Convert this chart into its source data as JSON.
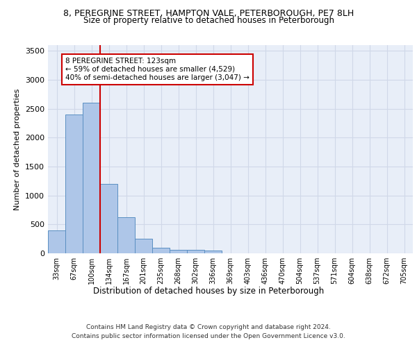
{
  "title_line1": "8, PEREGRINE STREET, HAMPTON VALE, PETERBOROUGH, PE7 8LH",
  "title_line2": "Size of property relative to detached houses in Peterborough",
  "xlabel": "Distribution of detached houses by size in Peterborough",
  "ylabel": "Number of detached properties",
  "categories": [
    "33sqm",
    "67sqm",
    "100sqm",
    "134sqm",
    "167sqm",
    "201sqm",
    "235sqm",
    "268sqm",
    "302sqm",
    "336sqm",
    "369sqm",
    "403sqm",
    "436sqm",
    "470sqm",
    "504sqm",
    "537sqm",
    "571sqm",
    "604sqm",
    "638sqm",
    "672sqm",
    "705sqm"
  ],
  "values": [
    400,
    2400,
    2600,
    1200,
    620,
    250,
    100,
    65,
    60,
    45,
    0,
    0,
    0,
    0,
    0,
    0,
    0,
    0,
    0,
    0,
    0
  ],
  "bar_color": "#aec6e8",
  "bar_edge_color": "#5a8fc2",
  "grid_color": "#d0d8e8",
  "background_color": "#e8eef8",
  "vline_color": "#cc0000",
  "vline_x": 2.5,
  "annotation_text": "8 PEREGRINE STREET: 123sqm\n← 59% of detached houses are smaller (4,529)\n40% of semi-detached houses are larger (3,047) →",
  "annotation_box_color": "#ffffff",
  "annotation_box_edge_color": "#cc0000",
  "footer_line1": "Contains HM Land Registry data © Crown copyright and database right 2024.",
  "footer_line2": "Contains public sector information licensed under the Open Government Licence v3.0.",
  "ylim": [
    0,
    3600
  ],
  "yticks": [
    0,
    500,
    1000,
    1500,
    2000,
    2500,
    3000,
    3500
  ]
}
